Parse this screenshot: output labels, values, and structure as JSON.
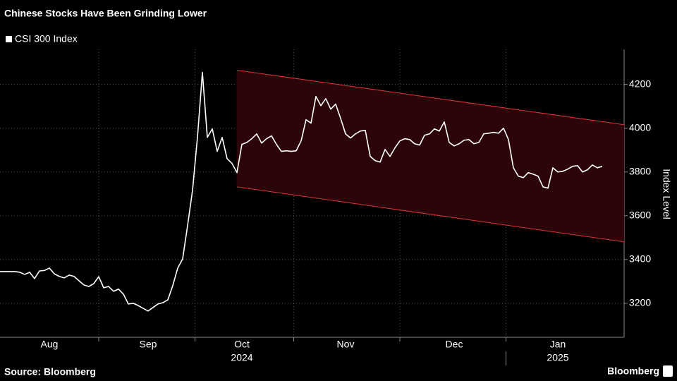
{
  "chart_data": {
    "type": "line",
    "title": "Chinese Stocks Have Been Grinding Lower",
    "y_label": "Index Level",
    "source": "Source: Bloomberg",
    "brand": "Bloomberg",
    "grid": true,
    "categories": [
      null,
      null,
      null,
      null,
      null,
      null,
      null,
      null,
      null,
      null,
      "Aug",
      null,
      null,
      null,
      null,
      null,
      null,
      null,
      null,
      null,
      null,
      null,
      null,
      null,
      null,
      null,
      null,
      null,
      null,
      null,
      "Sep",
      null,
      null,
      null,
      null,
      null,
      null,
      null,
      null,
      null,
      null,
      null,
      null,
      null,
      null,
      null,
      null,
      null,
      null,
      "Oct",
      null,
      null,
      null,
      null,
      null,
      null,
      null,
      null,
      null,
      null,
      null,
      null,
      null,
      null,
      null,
      null,
      null,
      null,
      null,
      null,
      "Nov",
      null,
      null,
      null,
      null,
      null,
      null,
      null,
      null,
      null,
      null,
      null,
      null,
      null,
      null,
      null,
      null,
      null,
      null,
      null,
      null,
      null,
      "Dec",
      null,
      null,
      null,
      null,
      null,
      null,
      null,
      null,
      null,
      null,
      null,
      null,
      null,
      null,
      null,
      null,
      null,
      null,
      null,
      null,
      "Jan",
      null,
      null,
      null,
      null,
      null,
      null,
      null,
      null,
      null
    ],
    "year_labels": [
      null,
      null,
      null,
      null,
      null,
      null,
      null,
      null,
      null,
      null,
      null,
      null,
      null,
      null,
      null,
      null,
      null,
      null,
      null,
      null,
      null,
      null,
      null,
      null,
      null,
      null,
      null,
      null,
      null,
      null,
      null,
      null,
      null,
      null,
      null,
      null,
      null,
      null,
      null,
      null,
      null,
      null,
      null,
      null,
      null,
      null,
      null,
      null,
      null,
      "2024",
      null,
      null,
      null,
      null,
      null,
      null,
      null,
      null,
      null,
      null,
      null,
      null,
      null,
      null,
      null,
      null,
      null,
      null,
      null,
      null,
      null,
      null,
      null,
      null,
      null,
      null,
      null,
      null,
      null,
      null,
      null,
      null,
      null,
      null,
      null,
      null,
      null,
      null,
      null,
      null,
      null,
      null,
      null,
      null,
      null,
      null,
      null,
      null,
      null,
      null,
      null,
      null,
      null,
      null,
      null,
      null,
      null,
      null,
      null,
      null,
      null,
      null,
      null,
      "2025",
      null,
      null,
      null,
      null,
      null,
      null,
      null,
      null,
      null
    ],
    "series": [
      {
        "name": "CSI 300 Index",
        "color": "#ffffff",
        "values": [
          3345,
          3345,
          3345,
          3345,
          3342,
          3332,
          3342,
          3313,
          3348,
          3350,
          3361,
          3335,
          3323,
          3316,
          3329,
          3323,
          3303,
          3284,
          3277,
          3290,
          3322,
          3271,
          3277,
          3255,
          3265,
          3242,
          3197,
          3200,
          3190,
          3177,
          3165,
          3181,
          3197,
          3203,
          3216,
          3281,
          3361,
          3403,
          3555,
          3716,
          3958,
          4255,
          3958,
          3997,
          3894,
          3958,
          3861,
          3839,
          3797,
          3926,
          3935,
          3952,
          3974,
          3932,
          3952,
          3965,
          3926,
          3894,
          3897,
          3894,
          3897,
          3942,
          4039,
          4023,
          4145,
          4103,
          4135,
          4087,
          4110,
          4045,
          3974,
          3955,
          3974,
          3987,
          3990,
          3871,
          3852,
          3845,
          3903,
          3871,
          3910,
          3942,
          3952,
          3948,
          3929,
          3923,
          3968,
          3974,
          3997,
          3987,
          4029,
          3935,
          3919,
          3929,
          3945,
          3948,
          3929,
          3935,
          3974,
          3977,
          3981,
          3977,
          4000,
          3948,
          3819,
          3781,
          3774,
          3797,
          3790,
          3781,
          3732,
          3726,
          3819,
          3800,
          3803,
          3813,
          3826,
          3829,
          3800,
          3810,
          3832,
          3819,
          3826
        ]
      }
    ],
    "channel": {
      "color": "#e0333c",
      "fill": "#2b0509",
      "upper": [
        null,
        null,
        null,
        null,
        null,
        null,
        null,
        null,
        null,
        null,
        null,
        null,
        null,
        null,
        null,
        null,
        null,
        null,
        null,
        null,
        null,
        null,
        null,
        null,
        null,
        null,
        null,
        null,
        null,
        null,
        null,
        null,
        null,
        null,
        null,
        null,
        null,
        null,
        null,
        null,
        null,
        null,
        null,
        null,
        null,
        null,
        null,
        null,
        4265,
        null,
        null,
        null,
        null,
        null,
        null,
        null,
        null,
        null,
        null,
        null,
        null,
        null,
        null,
        null,
        null,
        null,
        null,
        null,
        null,
        null,
        null,
        null,
        null,
        null,
        null,
        null,
        null,
        null,
        null,
        null,
        null,
        null,
        null,
        null,
        null,
        null,
        null,
        null,
        null,
        null,
        null,
        null,
        null,
        null,
        null,
        null,
        null,
        null,
        null,
        null,
        null,
        null,
        null,
        null,
        null,
        null,
        null,
        null,
        null,
        null,
        null,
        null,
        null,
        null,
        null,
        null,
        null,
        null,
        null,
        null,
        null,
        null,
        4030
      ],
      "lower": [
        null,
        null,
        null,
        null,
        null,
        null,
        null,
        null,
        null,
        null,
        null,
        null,
        null,
        null,
        null,
        null,
        null,
        null,
        null,
        null,
        null,
        null,
        null,
        null,
        null,
        null,
        null,
        null,
        null,
        null,
        null,
        null,
        null,
        null,
        null,
        null,
        null,
        null,
        null,
        null,
        null,
        null,
        null,
        null,
        null,
        null,
        null,
        null,
        3732,
        null,
        null,
        null,
        null,
        null,
        null,
        null,
        null,
        null,
        null,
        null,
        null,
        null,
        null,
        null,
        null,
        null,
        null,
        null,
        null,
        null,
        null,
        null,
        null,
        null,
        null,
        null,
        null,
        null,
        null,
        null,
        null,
        null,
        null,
        null,
        null,
        null,
        null,
        null,
        null,
        null,
        null,
        null,
        null,
        null,
        null,
        null,
        null,
        null,
        null,
        null,
        null,
        null,
        null,
        null,
        null,
        null,
        null,
        null,
        null,
        null,
        null,
        null,
        null,
        null,
        null,
        null,
        null,
        null,
        null,
        null,
        null,
        null,
        3495
      ]
    },
    "ylim": [
      3045,
      4360
    ],
    "yticks": [
      3200,
      3400,
      3600,
      3800,
      4000,
      4200
    ]
  }
}
